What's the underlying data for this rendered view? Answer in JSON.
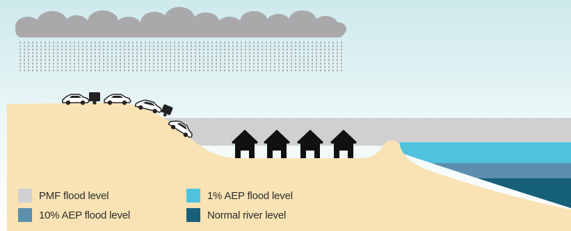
{
  "legend": [
    {
      "label": "PMF flood level",
      "color": "#d0d0d2"
    },
    {
      "label": "10% AEP flood level",
      "color": "#5b8fad"
    },
    {
      "label": "1% AEP flood level",
      "color": "#4fc3de"
    },
    {
      "label": "Normal river level",
      "color": "#17607a"
    }
  ],
  "colors": {
    "sky_top": "#cde9ec",
    "sky_bottom": "#ffffff",
    "land": "#f9e3b4",
    "cloud": "#a9a9ab",
    "rain": "#b4b4b6",
    "house": "#111111",
    "car": "#222222"
  },
  "icons": {
    "cloud": "cloud-icon",
    "rain": "rain-icon",
    "car": "car-icon",
    "trailer": "trailer-icon",
    "house": "house-icon"
  }
}
